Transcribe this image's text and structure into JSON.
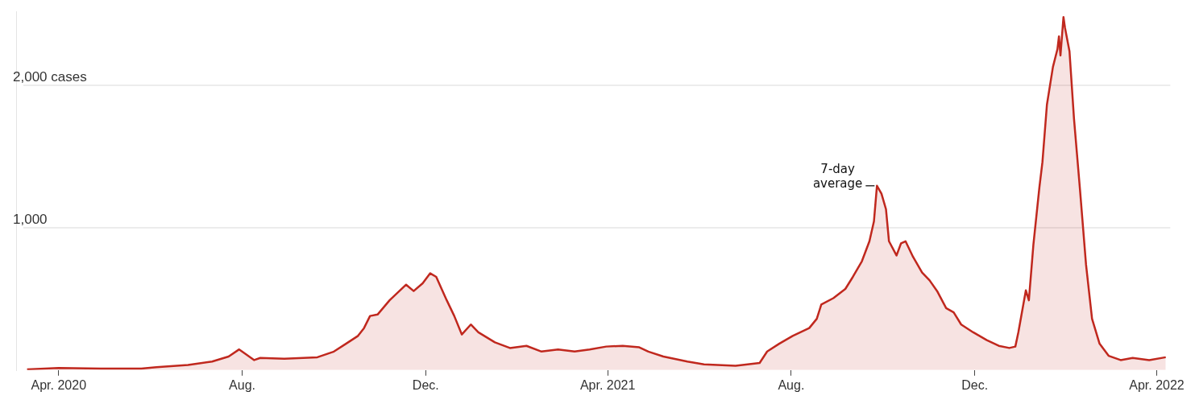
{
  "chart_data": {
    "type": "area",
    "x": [
      "2020-03-11",
      "2020-04-01",
      "2020-04-29",
      "2020-05-26",
      "2020-06-05",
      "2020-06-26",
      "2020-07-12",
      "2020-07-23",
      "2020-07-30",
      "2020-08-03",
      "2020-08-09",
      "2020-08-13",
      "2020-08-29",
      "2020-09-20",
      "2020-10-01",
      "2020-10-09",
      "2020-10-17",
      "2020-10-21",
      "2020-10-25",
      "2020-10-30",
      "2020-11-07",
      "2020-11-18",
      "2020-11-23",
      "2020-11-29",
      "2020-12-04",
      "2020-12-08",
      "2020-12-15",
      "2020-12-20",
      "2020-12-25",
      "2020-12-31",
      "2021-01-05",
      "2021-01-16",
      "2021-01-26",
      "2021-02-06",
      "2021-02-16",
      "2021-02-27",
      "2021-03-10",
      "2021-03-20",
      "2021-03-31",
      "2021-04-11",
      "2021-04-22",
      "2021-04-28",
      "2021-05-08",
      "2021-05-24",
      "2021-06-04",
      "2021-06-25",
      "2021-07-11",
      "2021-07-16",
      "2021-07-24",
      "2021-08-02",
      "2021-08-13",
      "2021-08-18",
      "2021-08-21",
      "2021-08-29",
      "2021-09-06",
      "2021-09-11",
      "2021-09-17",
      "2021-09-22",
      "2021-09-25",
      "2021-09-27",
      "2021-09-30",
      "2021-10-03",
      "2021-10-05",
      "2021-10-10",
      "2021-10-13",
      "2021-10-16",
      "2021-10-21",
      "2021-10-27",
      "2021-11-01",
      "2021-11-06",
      "2021-11-12",
      "2021-11-17",
      "2021-11-22",
      "2021-11-30",
      "2021-12-09",
      "2021-12-17",
      "2021-12-24",
      "2021-12-28",
      "2021-12-30",
      "2022-01-04",
      "2022-01-06",
      "2022-01-09",
      "2022-01-13",
      "2022-01-15",
      "2022-01-18",
      "2022-01-22",
      "2022-01-25",
      "2022-01-26",
      "2022-01-27",
      "2022-01-29",
      "2022-01-30",
      "2022-02-02",
      "2022-02-05",
      "2022-02-09",
      "2022-02-13",
      "2022-02-17",
      "2022-02-22",
      "2022-02-28",
      "2022-03-08",
      "2022-03-16",
      "2022-03-27",
      "2022-04-07"
    ],
    "series": [
      {
        "color": "#c0281e",
        "values": [
          5,
          15,
          10,
          10,
          20,
          35,
          60,
          95,
          145,
          115,
          70,
          85,
          80,
          90,
          130,
          185,
          240,
          295,
          380,
          390,
          490,
          600,
          555,
          610,
          680,
          655,
          490,
          380,
          250,
          320,
          265,
          195,
          155,
          170,
          130,
          145,
          130,
          145,
          165,
          170,
          160,
          130,
          95,
          60,
          40,
          30,
          50,
          130,
          185,
          240,
          295,
          360,
          460,
          505,
          570,
          655,
          765,
          905,
          1045,
          1295,
          1240,
          1130,
          905,
          805,
          890,
          905,
          795,
          685,
          630,
          555,
          435,
          405,
          320,
          265,
          210,
          170,
          155,
          165,
          265,
          560,
          490,
          880,
          1285,
          1460,
          1865,
          2130,
          2255,
          2345,
          2210,
          2480,
          2405,
          2240,
          1765,
          1265,
          740,
          360,
          185,
          100,
          70,
          85,
          70,
          90
        ]
      }
    ],
    "xlim": [
      "2020-03-08",
      "2022-04-10"
    ],
    "xticks": [
      {
        "value": "2020-04-01",
        "label": "Apr. 2020"
      },
      {
        "value": "2020-08-01",
        "label": "Aug."
      },
      {
        "value": "2020-12-01",
        "label": "Dec."
      },
      {
        "value": "2021-04-01",
        "label": "Apr. 2021"
      },
      {
        "value": "2021-08-01",
        "label": "Aug."
      },
      {
        "value": "2021-12-01",
        "label": "Dec."
      },
      {
        "value": "2022-04-01",
        "label": "Apr. 2022"
      }
    ],
    "ylim": [
      0,
      2520
    ],
    "yticks": [
      {
        "value": 1000,
        "label": "1,000"
      },
      {
        "value": 2000,
        "label": "2,000 cases"
      }
    ],
    "grid": "y",
    "legend": false,
    "annotations": [
      {
        "text": "7-day average",
        "x": "2021-09-27",
        "y": 1295
      }
    ]
  }
}
